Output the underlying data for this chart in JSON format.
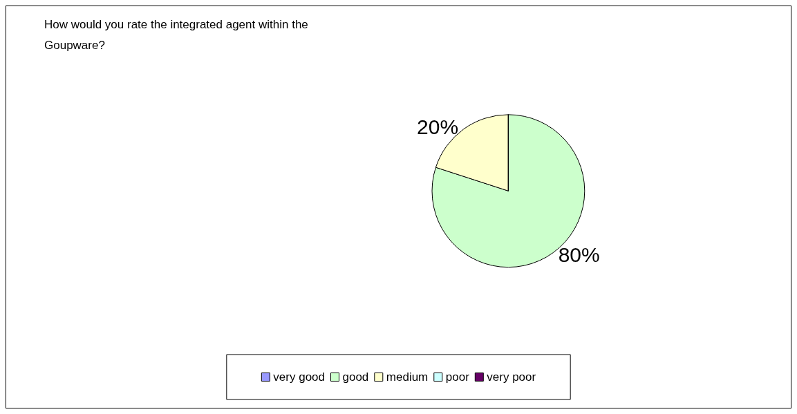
{
  "chart_data": {
    "type": "pie",
    "title": "How would you rate the integrated agent within the Goupware?",
    "categories": [
      "very good",
      "good",
      "medium",
      "poor",
      "very poor"
    ],
    "values": [
      0,
      80,
      20,
      0,
      0
    ],
    "colors": [
      "#9999ff",
      "#ccffcc",
      "#ffffcc",
      "#ccffff",
      "#660066"
    ],
    "value_labels": [
      null,
      "80%",
      "20%",
      null,
      null
    ],
    "legend": "bottom"
  }
}
